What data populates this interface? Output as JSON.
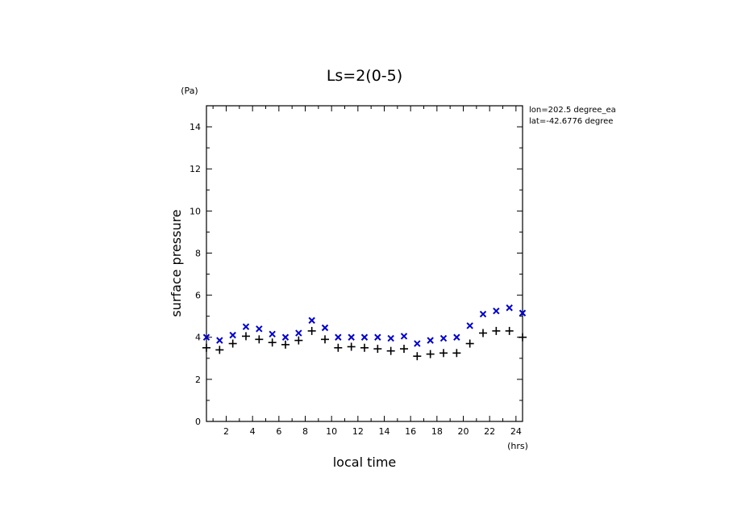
{
  "chart_data": {
    "type": "scatter",
    "title": "Ls=2(0-5)",
    "xlabel": "local time",
    "ylabel": "surface pressure",
    "x_unit": "(hrs)",
    "y_unit": "(Pa)",
    "xlim": [
      0.5,
      24.5
    ],
    "ylim": [
      0,
      15
    ],
    "x_ticks": [
      2,
      4,
      6,
      8,
      10,
      12,
      14,
      16,
      18,
      20,
      22,
      24
    ],
    "y_ticks": [
      0,
      2,
      4,
      6,
      8,
      10,
      12,
      14
    ],
    "annotations": [
      "lon=202.5 degree_ea",
      "lat=-42.6776 degree"
    ],
    "series": [
      {
        "marker": "x",
        "color": "#0000cc",
        "x": [
          0.5,
          1.5,
          2.5,
          3.5,
          4.5,
          5.5,
          6.5,
          7.5,
          8.5,
          9.5,
          10.5,
          11.5,
          12.5,
          13.5,
          14.5,
          15.5,
          16.5,
          17.5,
          18.5,
          19.5,
          20.5,
          21.5,
          22.5,
          23.5,
          24.5
        ],
        "y": [
          4.0,
          3.85,
          4.1,
          4.5,
          4.4,
          4.15,
          4.0,
          4.2,
          4.8,
          4.45,
          4.0,
          4.0,
          4.0,
          4.0,
          3.95,
          4.05,
          3.7,
          3.85,
          3.95,
          4.0,
          4.55,
          5.1,
          5.25,
          5.4,
          5.15
        ]
      },
      {
        "marker": "+",
        "color": "#000000",
        "x": [
          0.5,
          1.5,
          2.5,
          3.5,
          4.5,
          5.5,
          6.5,
          7.5,
          8.5,
          9.5,
          10.5,
          11.5,
          12.5,
          13.5,
          14.5,
          15.5,
          16.5,
          17.5,
          18.5,
          19.5,
          20.5,
          21.5,
          22.5,
          23.5,
          24.5
        ],
        "y": [
          3.5,
          3.4,
          3.7,
          4.05,
          3.9,
          3.75,
          3.65,
          3.85,
          4.3,
          3.9,
          3.5,
          3.55,
          3.5,
          3.45,
          3.35,
          3.45,
          3.1,
          3.2,
          3.25,
          3.25,
          3.7,
          4.2,
          4.3,
          4.3,
          4.0
        ]
      }
    ]
  }
}
